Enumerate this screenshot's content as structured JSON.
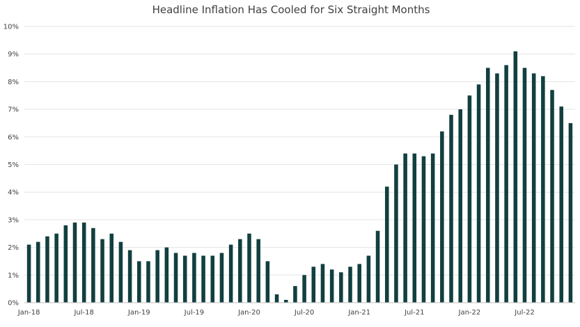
{
  "chart_data": {
    "type": "bar",
    "title": "Headline Inflation Has Cooled for Six Straight Months",
    "xlabel": "",
    "ylabel": "",
    "ylim": [
      0,
      10
    ],
    "y_ticks": [
      "0%",
      "1%",
      "2%",
      "3%",
      "4%",
      "5%",
      "6%",
      "7%",
      "8%",
      "9%",
      "10%"
    ],
    "x_tick_labels": [
      "Jan-18",
      "Jul-18",
      "Jan-19",
      "Jul-19",
      "Jan-20",
      "Jul-20",
      "Jan-21",
      "Jul-21",
      "Jan-22",
      "Jul-22"
    ],
    "x_tick_every": 6,
    "grid": true,
    "legend": "none",
    "bar_color": "#123f3f",
    "categories": [
      "Jan-18",
      "Feb-18",
      "Mar-18",
      "Apr-18",
      "May-18",
      "Jun-18",
      "Jul-18",
      "Aug-18",
      "Sep-18",
      "Oct-18",
      "Nov-18",
      "Dec-18",
      "Jan-19",
      "Feb-19",
      "Mar-19",
      "Apr-19",
      "May-19",
      "Jun-19",
      "Jul-19",
      "Aug-19",
      "Sep-19",
      "Oct-19",
      "Nov-19",
      "Dec-19",
      "Jan-20",
      "Feb-20",
      "Mar-20",
      "Apr-20",
      "May-20",
      "Jun-20",
      "Jul-20",
      "Aug-20",
      "Sep-20",
      "Oct-20",
      "Nov-20",
      "Dec-20",
      "Jan-21",
      "Feb-21",
      "Mar-21",
      "Apr-21",
      "May-21",
      "Jun-21",
      "Jul-21",
      "Aug-21",
      "Sep-21",
      "Oct-21",
      "Nov-21",
      "Dec-21",
      "Jan-22",
      "Feb-22",
      "Mar-22",
      "Apr-22",
      "May-22",
      "Jun-22",
      "Jul-22",
      "Aug-22",
      "Sep-22",
      "Oct-22",
      "Nov-22",
      "Dec-22"
    ],
    "values": [
      2.1,
      2.2,
      2.4,
      2.5,
      2.8,
      2.9,
      2.9,
      2.7,
      2.3,
      2.5,
      2.2,
      1.9,
      1.5,
      1.5,
      1.9,
      2.0,
      1.8,
      1.7,
      1.8,
      1.7,
      1.7,
      1.8,
      2.1,
      2.3,
      2.5,
      2.3,
      1.5,
      0.3,
      0.1,
      0.6,
      1.0,
      1.3,
      1.4,
      1.2,
      1.1,
      1.3,
      1.4,
      1.7,
      2.6,
      4.2,
      5.0,
      5.4,
      5.4,
      5.3,
      5.4,
      6.2,
      6.8,
      7.0,
      7.5,
      7.9,
      8.5,
      8.3,
      8.6,
      9.1,
      8.5,
      8.3,
      8.2,
      7.7,
      7.1,
      6.5
    ]
  }
}
